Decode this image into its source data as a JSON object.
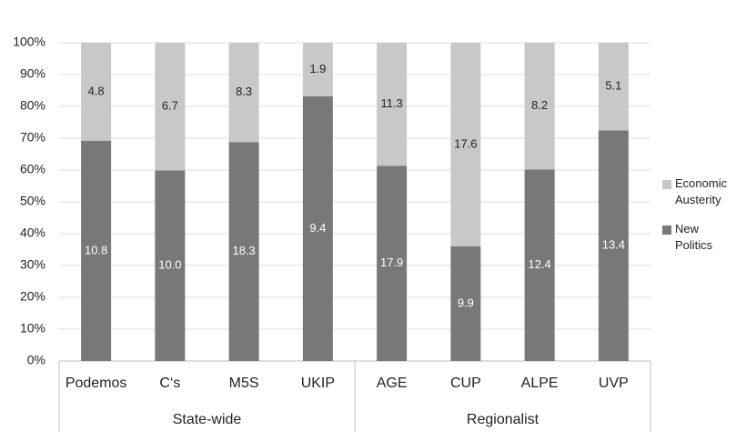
{
  "chart_data": {
    "type": "bar",
    "stacking": "percent",
    "categories": [
      "Podemos",
      "C‘s",
      "M5S",
      "UKIP",
      "AGE",
      "CUP",
      "ALPE",
      "UVP"
    ],
    "groups": [
      {
        "name": "State-wide",
        "count": 4
      },
      {
        "name": "Regionalist",
        "count": 4
      }
    ],
    "series": [
      {
        "name": "New Politics",
        "color": "#787878",
        "label_color": "#ffffff",
        "values": [
          10.8,
          10.0,
          18.3,
          9.4,
          17.9,
          9.9,
          12.4,
          13.4
        ],
        "value_labels": [
          "10.8",
          "10.0",
          "18.3",
          "9.4",
          "17.9",
          "9.9",
          "12.4",
          "13.4"
        ]
      },
      {
        "name": "Economic Austerity",
        "color": "#c8c8c8",
        "label_color": "#222222",
        "values": [
          4.8,
          6.7,
          8.3,
          1.9,
          11.3,
          17.6,
          8.2,
          5.1
        ]
      }
    ],
    "ylim": [
      0,
      100
    ],
    "yticks": [
      {
        "value": 0,
        "label": "0%"
      },
      {
        "value": 10,
        "label": "10%"
      },
      {
        "value": 20,
        "label": "20%"
      },
      {
        "value": 30,
        "label": "30%"
      },
      {
        "value": 40,
        "label": "40%"
      },
      {
        "value": 50,
        "label": "50%"
      },
      {
        "value": 60,
        "label": "60%"
      },
      {
        "value": 70,
        "label": "70%"
      },
      {
        "value": 80,
        "label": "80%"
      },
      {
        "value": 90,
        "label": "90%"
      },
      {
        "value": 100,
        "label": "100%"
      }
    ],
    "grid": true,
    "legend": "right"
  }
}
